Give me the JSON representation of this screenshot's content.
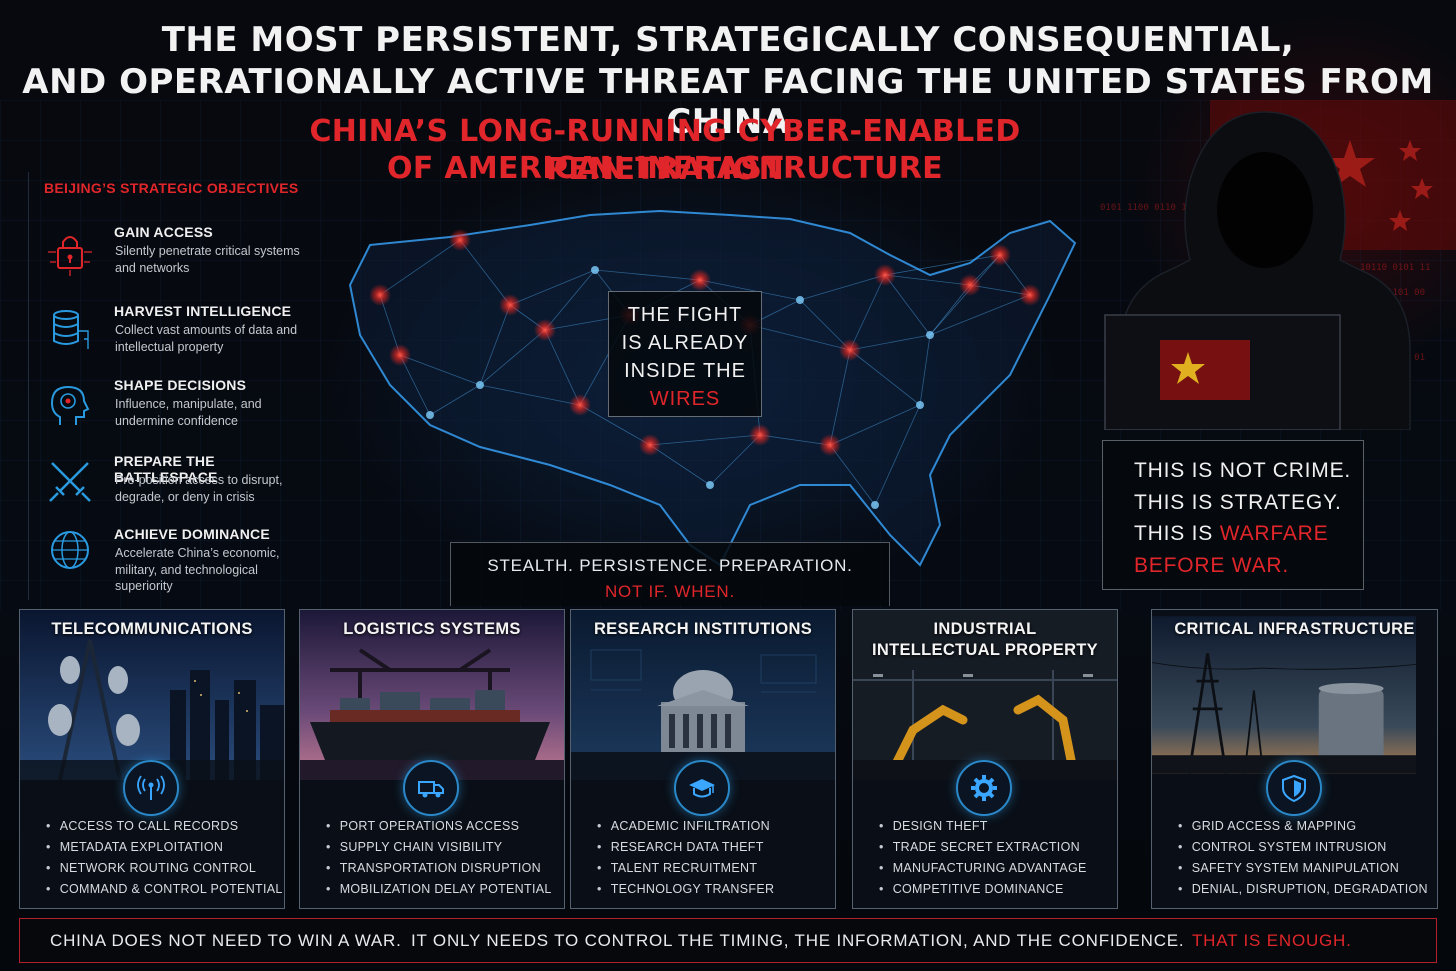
{
  "header": {
    "title_line1": "THE MOST PERSISTENT, STRATEGICALLY CONSEQUENTIAL,",
    "title_line2": "AND OPERATIONALLY ACTIVE THREAT FACING THE UNITED STATES FROM CHINA",
    "subtitle_line1": "CHINA’S LONG-RUNNING CYBER-ENABLED PENETRATION",
    "subtitle_line2": "OF AMERICAN INFRASTRUCTURE"
  },
  "objectives": {
    "title": "BEIJING’S STRATEGIC OBJECTIVES",
    "items": [
      {
        "title": "GAIN ACCESS",
        "description": "Silently penetrate critical systems and networks",
        "icon": "padlock-circuit-icon"
      },
      {
        "title": "HARVEST INTELLIGENCE",
        "description": "Collect vast amounts of data and intellectual property",
        "icon": "database-icon"
      },
      {
        "title": "SHAPE DECISIONS",
        "description": "Influence, manipulate, and undermine confidence",
        "icon": "head-target-icon"
      },
      {
        "title": "PREPARE THE BATTLESPACE",
        "description": "Pre-position access to disrupt, degrade, or deny in crisis",
        "icon": "crossed-swords-icon"
      },
      {
        "title": "ACHIEVE DOMINANCE",
        "description": "Accelerate China’s economic, military, and technological superiority",
        "icon": "globe-icon"
      }
    ]
  },
  "callouts": {
    "fight": [
      "THE FIGHT",
      "IS ALREADY",
      "INSIDE THE",
      "WIRES"
    ],
    "stealth_line1": "STEALTH. PERSISTENCE. PREPARATION.",
    "stealth_line2": "NOT IF. WHEN.",
    "warfare": [
      "THIS IS NOT CRIME.",
      "THIS IS STRATEGY.",
      "THIS IS ",
      "WARFARE",
      "BEFORE WAR."
    ]
  },
  "sectors": [
    {
      "title": "TELECOMMUNICATIONS",
      "icon": "signal-tower-icon",
      "bullets": [
        "ACCESS TO CALL RECORDS",
        "METADATA EXPLOITATION",
        "NETWORK ROUTING CONTROL",
        "COMMAND & CONTROL POTENTIAL"
      ]
    },
    {
      "title": "LOGISTICS SYSTEMS",
      "icon": "truck-icon",
      "bullets": [
        "PORT OPERATIONS ACCESS",
        "SUPPLY CHAIN VISIBILITY",
        "TRANSPORTATION DISRUPTION",
        "MOBILIZATION DELAY POTENTIAL"
      ]
    },
    {
      "title": "RESEARCH INSTITUTIONS",
      "icon": "graduation-cap-icon",
      "bullets": [
        "ACADEMIC INFILTRATION",
        "RESEARCH DATA THEFT",
        "TALENT RECRUITMENT",
        "TECHNOLOGY TRANSFER"
      ]
    },
    {
      "title_line1": "INDUSTRIAL",
      "title_line2": "INTELLECTUAL PROPERTY",
      "icon": "gear-icon",
      "bullets": [
        "DESIGN THEFT",
        "TRADE SECRET EXTRACTION",
        "MANUFACTURING ADVANTAGE",
        "COMPETITIVE DOMINANCE"
      ]
    },
    {
      "title": "CRITICAL INFRASTRUCTURE",
      "icon": "shield-icon",
      "bullets": [
        "GRID ACCESS & MAPPING",
        "CONTROL SYSTEM INTRUSION",
        "SAFETY SYSTEM MANIPULATION",
        "DENIAL, DISRUPTION, DEGRADATION"
      ]
    }
  ],
  "footer": {
    "part1": "CHINA DOES NOT NEED TO WIN A WAR.",
    "part2": "IT ONLY NEEDS TO CONTROL THE TIMING, THE INFORMATION, AND THE CONFIDENCE.",
    "part3": "THAT IS ENOUGH."
  },
  "colors": {
    "accent_red": "#e0262a",
    "accent_blue": "#2a88c8",
    "background": "#05080d"
  }
}
